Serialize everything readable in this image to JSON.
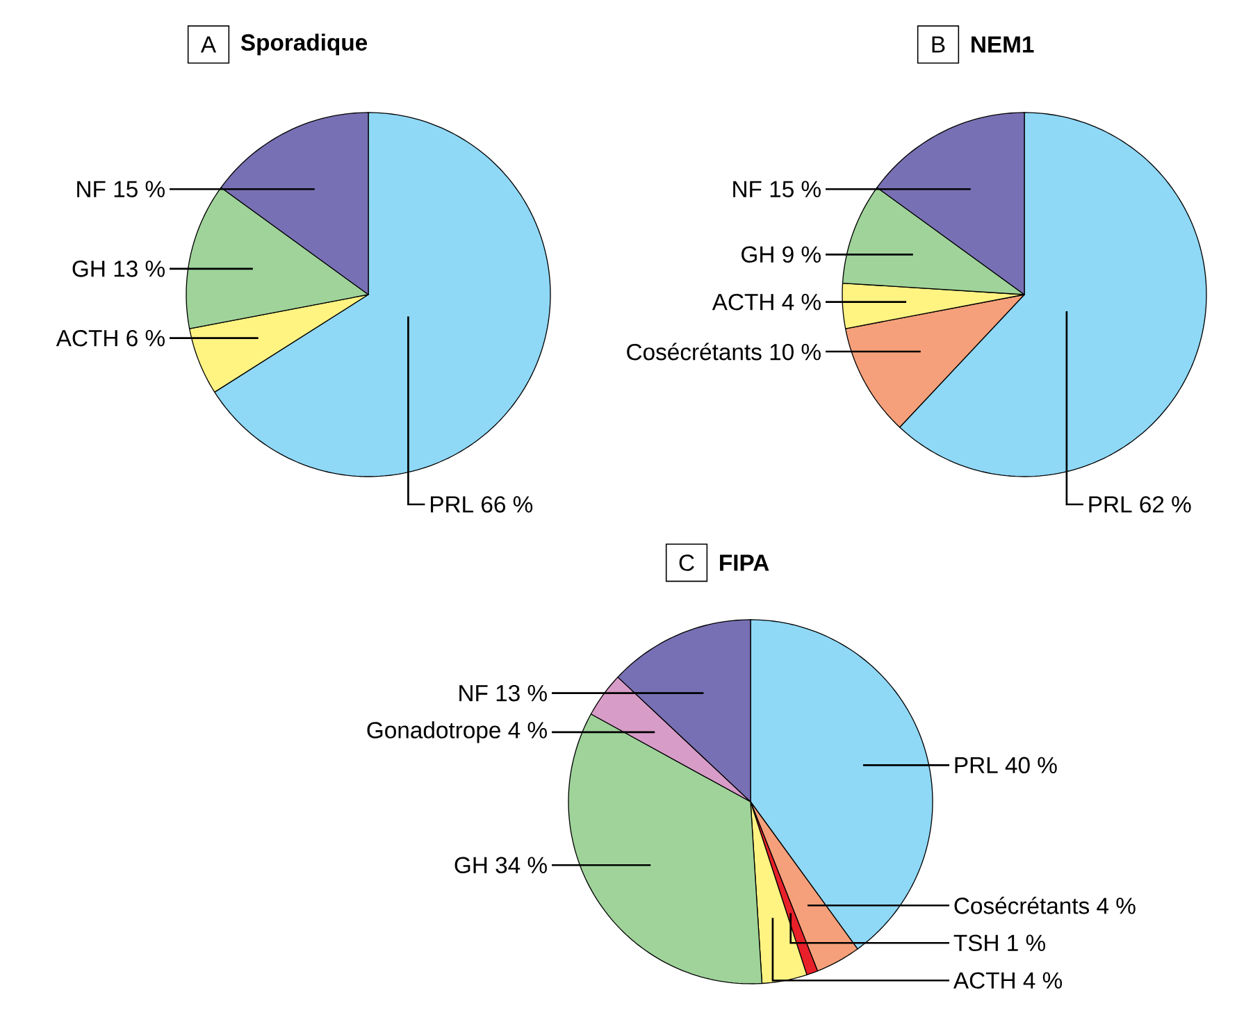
{
  "chart_data": [
    {
      "type": "pie",
      "subtitle": "A",
      "title": "Sporadique",
      "categories": [
        "PRL",
        "ACTH",
        "GH",
        "NF"
      ],
      "values": [
        66,
        6,
        13,
        15
      ],
      "value_labels": [
        "66 %",
        "6 %",
        "13 %",
        "15 %"
      ],
      "colors": [
        "#8fd8f6",
        "#fff382",
        "#9fd39a",
        "#7870b4"
      ]
    },
    {
      "type": "pie",
      "subtitle": "B",
      "title": "NEM1",
      "categories": [
        "PRL",
        "Cosécrétants",
        "ACTH",
        "GH",
        "NF"
      ],
      "values": [
        62,
        10,
        4,
        9,
        15
      ],
      "value_labels": [
        "62 %",
        "10 %",
        "4 %",
        "9 %",
        "15 %"
      ],
      "colors": [
        "#8fd8f6",
        "#f5a07a",
        "#fff382",
        "#9fd39a",
        "#7870b4"
      ]
    },
    {
      "type": "pie",
      "subtitle": "C",
      "title": "FIPA",
      "categories": [
        "PRL",
        "Cosécrétants",
        "TSH",
        "ACTH",
        "GH",
        "Gonadotrope",
        "NF"
      ],
      "values": [
        40,
        4,
        1,
        4,
        34,
        4,
        13
      ],
      "value_labels": [
        "40 %",
        "4 %",
        "1 %",
        "4 %",
        "34 %",
        "4 %",
        "13 %"
      ],
      "colors": [
        "#8fd8f6",
        "#f5a07a",
        "#e8202a",
        "#fff382",
        "#9fd39a",
        "#d89cc8",
        "#7870b4"
      ]
    }
  ]
}
